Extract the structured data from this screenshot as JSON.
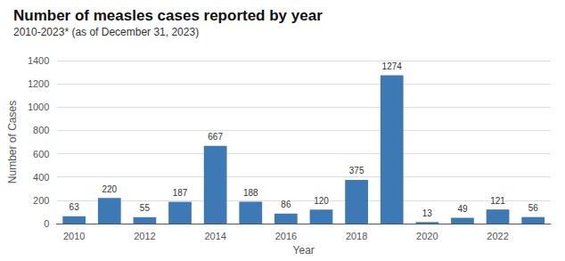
{
  "chart_data": {
    "type": "bar",
    "title": "Number of measles cases reported by year",
    "subtitle": "2010-2023* (as of December 31, 2023)",
    "xlabel": "Year",
    "ylabel": "Number of Cases",
    "categories": [
      "2010",
      null,
      "2012",
      null,
      "2014",
      null,
      "2016",
      null,
      "2018",
      null,
      "2020",
      null,
      "2022",
      null
    ],
    "values": [
      63,
      220,
      55,
      187,
      667,
      188,
      86,
      120,
      375,
      1274,
      13,
      49,
      121,
      56
    ],
    "color": "#3d7ab5",
    "ylim": [
      0,
      1400
    ],
    "yticks": [
      0,
      200,
      400,
      600,
      800,
      1000,
      1200,
      1400
    ],
    "grid": true,
    "data_labels": true
  }
}
